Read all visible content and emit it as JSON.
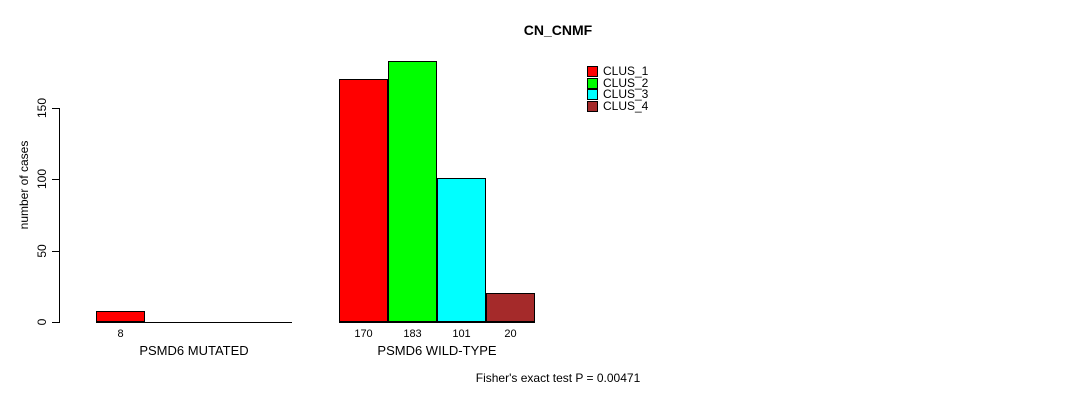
{
  "title": "CN_CNMF",
  "footer": "Fisher's exact test P = 0.00471",
  "y_axis": {
    "label": "number of cases",
    "ticks": [
      0,
      50,
      100,
      150
    ]
  },
  "chart_data": {
    "type": "bar",
    "title": "CN_CNMF",
    "xlabel": "",
    "ylabel": "number of cases",
    "ylim": [
      0,
      183
    ],
    "yticks": [
      0,
      50,
      100,
      150
    ],
    "grid": false,
    "legend_position": "top-right",
    "categories": [
      "PSMD6 MUTATED",
      "PSMD6 WILD-TYPE"
    ],
    "series": [
      {
        "name": "CLUS_1",
        "color": "#FF0000",
        "values": [
          8,
          170
        ]
      },
      {
        "name": "CLUS_2",
        "color": "#00FF00",
        "values": [
          0,
          183
        ]
      },
      {
        "name": "CLUS_3",
        "color": "#00FFFF",
        "values": [
          0,
          101
        ]
      },
      {
        "name": "CLUS_4",
        "color": "#A52A2A",
        "values": [
          0,
          20
        ]
      }
    ],
    "bar_value_labels": {
      "PSMD6 MUTATED": [
        "8",
        "",
        "",
        ""
      ],
      "PSMD6 WILD-TYPE": [
        "170",
        "183",
        "101",
        "20"
      ]
    },
    "annotation": "Fisher's exact test P = 0.00471"
  }
}
